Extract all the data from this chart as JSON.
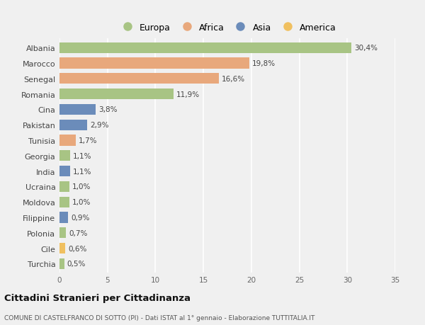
{
  "countries": [
    "Albania",
    "Marocco",
    "Senegal",
    "Romania",
    "Cina",
    "Pakistan",
    "Tunisia",
    "Georgia",
    "India",
    "Ucraina",
    "Moldova",
    "Filippine",
    "Polonia",
    "Cile",
    "Turchia"
  ],
  "values": [
    30.4,
    19.8,
    16.6,
    11.9,
    3.8,
    2.9,
    1.7,
    1.1,
    1.1,
    1.0,
    1.0,
    0.9,
    0.7,
    0.6,
    0.5
  ],
  "labels": [
    "30,4%",
    "19,8%",
    "16,6%",
    "11,9%",
    "3,8%",
    "2,9%",
    "1,7%",
    "1,1%",
    "1,1%",
    "1,0%",
    "1,0%",
    "0,9%",
    "0,7%",
    "0,6%",
    "0,5%"
  ],
  "continents": [
    "Europa",
    "Africa",
    "Africa",
    "Europa",
    "Asia",
    "Asia",
    "Africa",
    "Europa",
    "Asia",
    "Europa",
    "Europa",
    "Asia",
    "Europa",
    "America",
    "Europa"
  ],
  "colors": {
    "Europa": "#a8c484",
    "Africa": "#e8a87c",
    "Asia": "#6b8cba",
    "America": "#f0c060"
  },
  "xlim": [
    0,
    35
  ],
  "xticks": [
    0,
    5,
    10,
    15,
    20,
    25,
    30,
    35
  ],
  "title": "Cittadini Stranieri per Cittadinanza",
  "subtitle": "COMUNE DI CASTELFRANCO DI SOTTO (PI) - Dati ISTAT al 1° gennaio - Elaborazione TUTTITALIA.IT",
  "background_color": "#f0f0f0",
  "grid_color": "#ffffff",
  "bar_height": 0.7,
  "legend_order": [
    "Europa",
    "Africa",
    "Asia",
    "America"
  ]
}
